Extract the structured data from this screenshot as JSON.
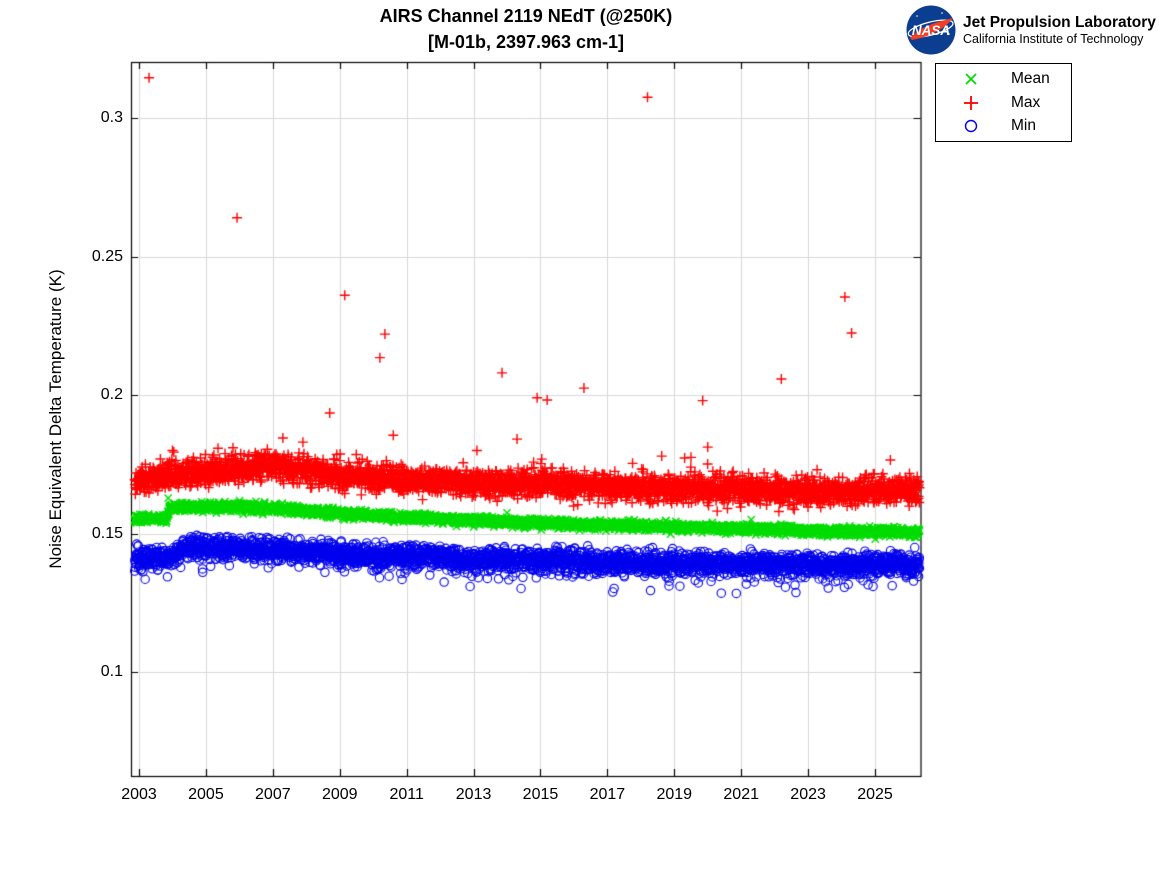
{
  "header": {
    "title_line1": "AIRS Channel 2119 NEdT (@250K)",
    "title_line2": "[M-01b, 2397.963 cm-1]",
    "logo": {
      "org": "NASA",
      "name": "Jet Propulsion Laboratory",
      "sub": "California Institute of Technology",
      "meatball_blue": "#0b3d91",
      "swoosh_red": "#fc3d21"
    }
  },
  "legend": {
    "items": [
      {
        "label": "Mean",
        "marker": "x",
        "color": "#00dd00"
      },
      {
        "label": "Max",
        "marker": "+",
        "color": "#ff0000"
      },
      {
        "label": "Min",
        "marker": "o",
        "color": "#0000ee"
      }
    ]
  },
  "axes": {
    "y_label": "Noise Equivalent Delta Temperature (K)",
    "x_tick_labels": [
      "2003",
      "2005",
      "2007",
      "2009",
      "2011",
      "2013",
      "2015",
      "2017",
      "2019",
      "2021",
      "2023",
      "2025"
    ],
    "y_tick_labels": [
      "0.1",
      "0.15",
      "0.2",
      "0.25",
      "0.3"
    ]
  },
  "chart_data": {
    "type": "scatter",
    "title": "AIRS Channel 2119 NEdT (@250K) [M-01b, 2397.963 cm-1]",
    "ylabel": "Noise Equivalent Delta Temperature (K)",
    "xlim": [
      2002.76,
      2026.36
    ],
    "ylim": [
      0.0625,
      0.3202
    ],
    "x_tick_values": [
      2003,
      2005,
      2007,
      2009,
      2011,
      2013,
      2015,
      2017,
      2019,
      2021,
      2023,
      2025
    ],
    "y_tick_values": [
      0.1,
      0.15,
      0.2,
      0.25,
      0.3
    ],
    "grid": true,
    "grid_color": "#d9d9d9",
    "box_color": "#000000",
    "legend_position": "outside-top-right",
    "sampling": {
      "start": 2002.87,
      "end": 2026.33,
      "n": 3450,
      "seed": 20119
    },
    "series": [
      {
        "name": "Max",
        "marker": "+",
        "color": "#ff0000",
        "sigma": 0.0024,
        "tail": {
          "prob": 0.012,
          "min": 0.002,
          "max": 0.009,
          "direction": 1
        },
        "trend": [
          [
            2002.87,
            0.1685
          ],
          [
            2004.2,
            0.1715
          ],
          [
            2005.5,
            0.173
          ],
          [
            2006.8,
            0.1745
          ],
          [
            2008.0,
            0.1725
          ],
          [
            2009.5,
            0.1705
          ],
          [
            2011,
            0.1695
          ],
          [
            2013,
            0.1685
          ],
          [
            2015,
            0.168
          ],
          [
            2017,
            0.167
          ],
          [
            2019,
            0.1663
          ],
          [
            2021,
            0.1658
          ],
          [
            2023,
            0.165
          ],
          [
            2025,
            0.1653
          ],
          [
            2026.33,
            0.1655
          ]
        ],
        "outliers": [
          [
            2003.3,
            0.3145
          ],
          [
            2005.93,
            0.264
          ],
          [
            2009.15,
            0.236
          ],
          [
            2008.7,
            0.1935
          ],
          [
            2010.2,
            0.2135
          ],
          [
            2010.35,
            0.222
          ],
          [
            2010.6,
            0.1855
          ],
          [
            2013.1,
            0.18
          ],
          [
            2013.85,
            0.208
          ],
          [
            2014.3,
            0.1841
          ],
          [
            2014.9,
            0.199
          ],
          [
            2015.2,
            0.1982
          ],
          [
            2016.3,
            0.2025
          ],
          [
            2018.2,
            0.3075
          ],
          [
            2019.5,
            0.1775
          ],
          [
            2019.85,
            0.198
          ],
          [
            2020.0,
            0.1812
          ],
          [
            2022.2,
            0.2058
          ],
          [
            2024.1,
            0.2354
          ],
          [
            2024.3,
            0.2224
          ],
          [
            2004.0,
            0.18
          ],
          [
            2005.36,
            0.1808
          ],
          [
            2007.3,
            0.1845
          ],
          [
            2007.9,
            0.183
          ]
        ]
      },
      {
        "name": "Mean",
        "marker": "x",
        "color": "#00dd00",
        "sigma": 0.0008,
        "tail": null,
        "trend": [
          [
            2002.87,
            0.1555
          ],
          [
            2003.82,
            0.1555
          ],
          [
            2003.92,
            0.1595
          ],
          [
            2006,
            0.1597
          ],
          [
            2007.2,
            0.159
          ],
          [
            2008,
            0.158
          ],
          [
            2010,
            0.1565
          ],
          [
            2012,
            0.1552
          ],
          [
            2014,
            0.1542
          ],
          [
            2016,
            0.1533
          ],
          [
            2018,
            0.1527
          ],
          [
            2020,
            0.152
          ],
          [
            2022,
            0.1515
          ],
          [
            2024,
            0.1508
          ],
          [
            2026.33,
            0.1506
          ]
        ],
        "outliers": [
          [
            2003.87,
            0.1628
          ],
          [
            2014.0,
            0.1575
          ],
          [
            2021.3,
            0.155
          ]
        ]
      },
      {
        "name": "Min",
        "marker": "o",
        "color": "#0000ee",
        "sigma": 0.002,
        "tail": {
          "prob": 0.05,
          "min": 0.001,
          "max": 0.0075,
          "direction": -1
        },
        "trend": [
          [
            2002.87,
            0.1408
          ],
          [
            2003.9,
            0.1415
          ],
          [
            2004.4,
            0.1448
          ],
          [
            2006,
            0.1448
          ],
          [
            2007.5,
            0.1438
          ],
          [
            2009,
            0.1428
          ],
          [
            2011,
            0.1418
          ],
          [
            2013,
            0.1408
          ],
          [
            2015,
            0.1402
          ],
          [
            2017,
            0.1398
          ],
          [
            2019,
            0.1393
          ],
          [
            2021,
            0.1388
          ],
          [
            2023,
            0.1385
          ],
          [
            2025,
            0.1385
          ],
          [
            2026.33,
            0.1388
          ]
        ],
        "outliers": []
      }
    ]
  }
}
